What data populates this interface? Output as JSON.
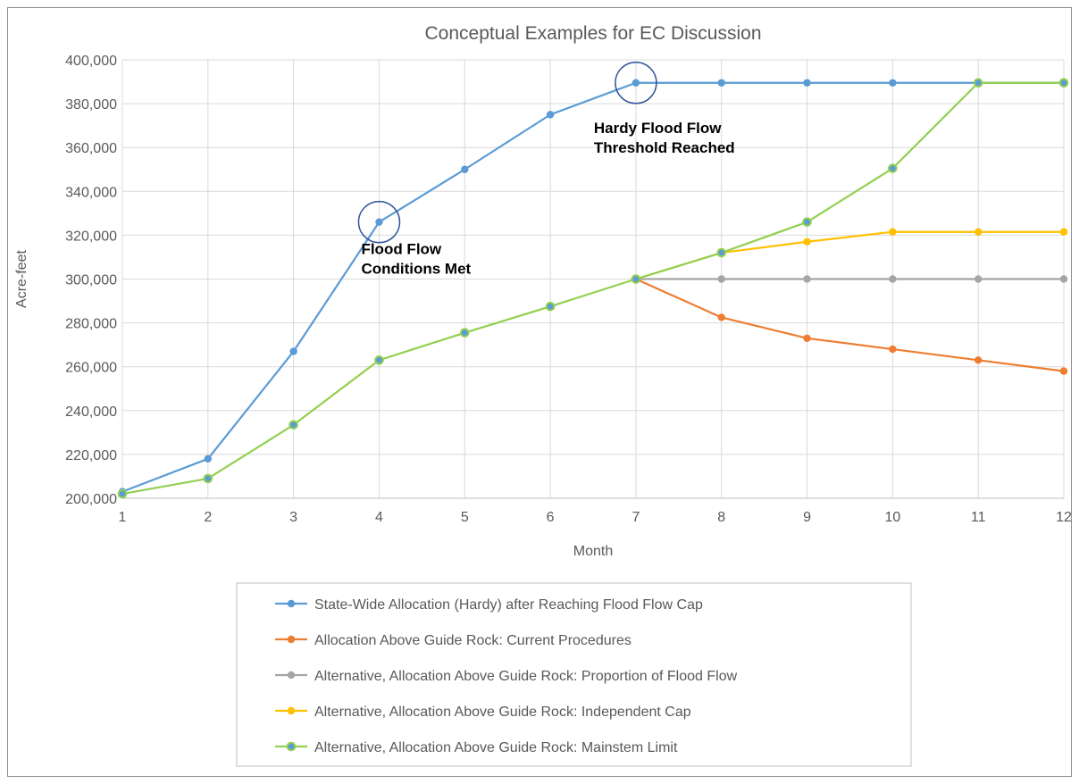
{
  "chart_data": {
    "type": "line",
    "title": "Conceptual Examples for EC Discussion",
    "xlabel": "Month",
    "ylabel": "Acre-feet",
    "x": [
      1,
      2,
      3,
      4,
      5,
      6,
      7,
      8,
      9,
      10,
      11,
      12
    ],
    "xlim": [
      1,
      12
    ],
    "ylim": [
      200000,
      400000
    ],
    "ytick_step": 20000,
    "ytick_labels": [
      "200,000",
      "220,000",
      "240,000",
      "260,000",
      "280,000",
      "300,000",
      "320,000",
      "340,000",
      "360,000",
      "380,000",
      "400,000"
    ],
    "grid": true,
    "legend_position": "bottom",
    "series": [
      {
        "name": "State-Wide Allocation (Hardy) after Reaching Flood Flow Cap",
        "color": "#5b9bd5",
        "marker_fill": "#5b9bd5",
        "values": [
          203000,
          218000,
          267000,
          326000,
          350000,
          375000,
          389500,
          389500,
          389500,
          389500,
          389500,
          389500
        ]
      },
      {
        "name": "Allocation Above Guide Rock: Current Procedures",
        "color": "#ed7d31",
        "marker_fill": "#ed7d31",
        "values": [
          null,
          null,
          null,
          null,
          null,
          null,
          300000,
          282500,
          273000,
          268000,
          263000,
          258000
        ]
      },
      {
        "name": "Alternative, Allocation Above Guide Rock: Proportion of Flood Flow",
        "color": "#a5a5a5",
        "marker_fill": "#a5a5a5",
        "values": [
          null,
          null,
          null,
          null,
          null,
          null,
          300000,
          300000,
          300000,
          300000,
          300000,
          300000
        ]
      },
      {
        "name": "Alternative, Allocation Above Guide Rock: Independent Cap",
        "color": "#ffc000",
        "marker_fill": "#ffc000",
        "values": [
          null,
          null,
          null,
          null,
          null,
          null,
          300000,
          312000,
          317000,
          321500,
          321500,
          321500
        ]
      },
      {
        "name": "Alternative, Allocation Above Guide Rock: Mainstem Limit",
        "color": "#92d050",
        "marker_fill": "#5b9bd5",
        "values": [
          202000,
          209000,
          233500,
          263000,
          275500,
          287500,
          300000,
          312000,
          326000,
          350500,
          389500,
          389500
        ]
      }
    ],
    "annotations": [
      {
        "id": "flood-flow",
        "lines": [
          "Flood Flow",
          "Conditions Met"
        ],
        "x": 4,
        "y": 326000
      },
      {
        "id": "hardy-threshold",
        "lines": [
          "Hardy Flood Flow",
          "Threshold Reached"
        ],
        "x": 7,
        "y": 389500
      }
    ]
  }
}
